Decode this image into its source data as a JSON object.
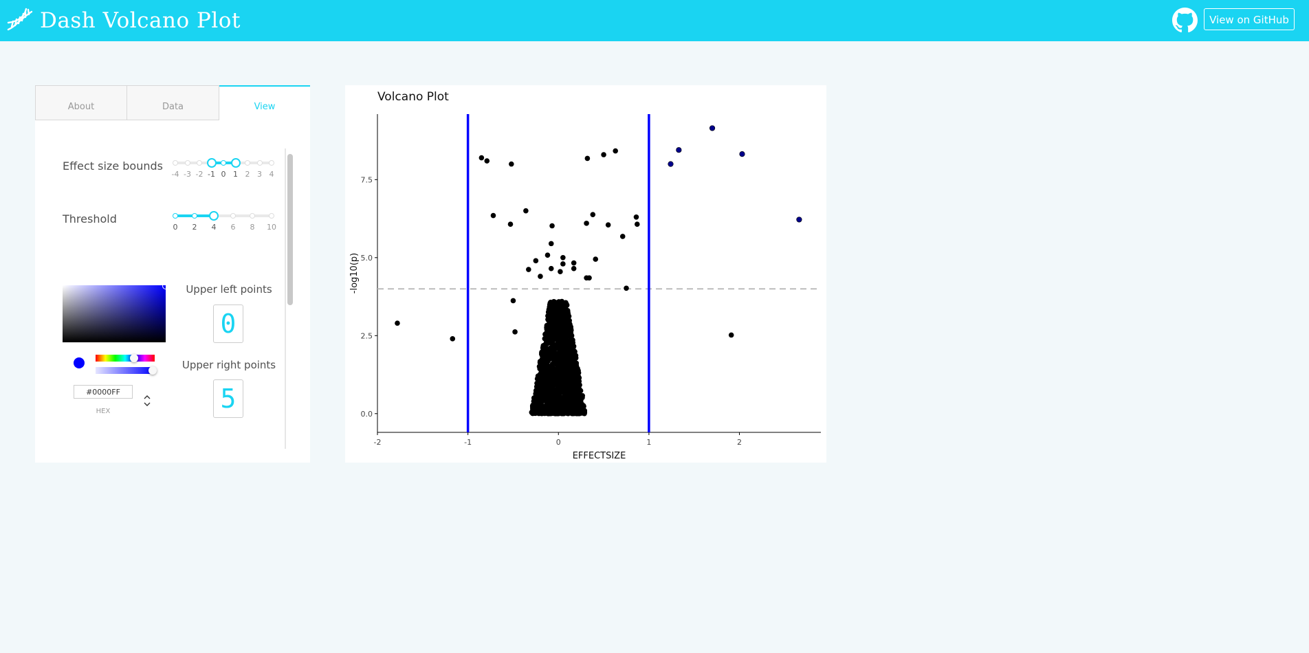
{
  "header": {
    "title": "Dash Volcano Plot",
    "github_button": "View on GitHub",
    "accent_color": "#1ad4f2"
  },
  "tabs": [
    {
      "label": "About",
      "selected": false
    },
    {
      "label": "Data",
      "selected": false
    },
    {
      "label": "View",
      "selected": true
    }
  ],
  "controls": {
    "effect_size": {
      "label": "Effect size bounds",
      "marks": [
        "-4",
        "-3",
        "-2",
        "-1",
        "0",
        "1",
        "2",
        "3",
        "4"
      ],
      "min": -4,
      "max": 4,
      "value": [
        -1,
        1
      ]
    },
    "threshold": {
      "label": "Threshold",
      "marks": [
        "0",
        "2",
        "4",
        "6",
        "8",
        "10"
      ],
      "min": 0,
      "max": 10,
      "value": 4
    },
    "color_picker": {
      "hex_value": "#0000FF",
      "hex_label": "HEX",
      "color": "#0000ff"
    },
    "upper_left": {
      "label": "Upper left points",
      "value": "0"
    },
    "upper_right": {
      "label": "Upper right points",
      "value": "5"
    }
  },
  "chart_data": {
    "type": "scatter",
    "title": "Volcano Plot",
    "xlabel": "EFFECTSIZE",
    "ylabel": "-log10(p)",
    "xlim": [
      -2,
      2.9
    ],
    "ylim": [
      -0.6,
      9.6
    ],
    "x_ticks": [
      "-2",
      "-1",
      "0",
      "1",
      "2"
    ],
    "x_tick_values": [
      -2,
      -1,
      0,
      1,
      2
    ],
    "y_ticks": [
      "0.0",
      "2.5",
      "5.0",
      "7.5"
    ],
    "y_tick_values": [
      0,
      2.5,
      5,
      7.5
    ],
    "grid": false,
    "effect_bounds": [
      -1,
      1
    ],
    "threshold_line": 4,
    "bound_line_color": "#0000ff",
    "threshold_line_color": "#bbbbbb",
    "base_point_color": "#000000",
    "highlight_color": "#00008b",
    "dense_cluster": {
      "x_center": 0.0,
      "x_spread": 0.3,
      "y_min": 0,
      "y_max": 3.6
    },
    "points": [
      {
        "x": -0.85,
        "y": 8.2
      },
      {
        "x": -0.79,
        "y": 8.1
      },
      {
        "x": -0.52,
        "y": 8.0
      },
      {
        "x": -0.72,
        "y": 6.35
      },
      {
        "x": -0.36,
        "y": 6.5
      },
      {
        "x": -0.53,
        "y": 6.07
      },
      {
        "x": -0.07,
        "y": 6.02
      },
      {
        "x": 0.31,
        "y": 6.1
      },
      {
        "x": 0.38,
        "y": 6.38
      },
      {
        "x": 0.55,
        "y": 6.05
      },
      {
        "x": 0.71,
        "y": 5.68
      },
      {
        "x": 0.86,
        "y": 6.3
      },
      {
        "x": 0.87,
        "y": 6.07
      },
      {
        "x": 0.32,
        "y": 8.18
      },
      {
        "x": 0.5,
        "y": 8.3
      },
      {
        "x": 0.63,
        "y": 8.42
      },
      {
        "x": -0.08,
        "y": 5.45
      },
      {
        "x": -0.12,
        "y": 5.08
      },
      {
        "x": -0.25,
        "y": 4.9
      },
      {
        "x": -0.33,
        "y": 4.62
      },
      {
        "x": -0.2,
        "y": 4.4
      },
      {
        "x": -0.08,
        "y": 4.65
      },
      {
        "x": 0.02,
        "y": 4.55
      },
      {
        "x": 0.05,
        "y": 5.0
      },
      {
        "x": 0.05,
        "y": 4.8
      },
      {
        "x": 0.17,
        "y": 4.83
      },
      {
        "x": 0.17,
        "y": 4.65
      },
      {
        "x": 0.31,
        "y": 4.35
      },
      {
        "x": 0.34,
        "y": 4.35
      },
      {
        "x": 0.41,
        "y": 4.95
      },
      {
        "x": 0.75,
        "y": 4.02
      },
      {
        "x": -0.5,
        "y": 3.62
      },
      {
        "x": -0.48,
        "y": 2.62
      },
      {
        "x": -1.78,
        "y": 2.9
      },
      {
        "x": -1.17,
        "y": 2.4
      },
      {
        "x": 1.91,
        "y": 2.52
      },
      {
        "x": 1.24,
        "y": 8.0,
        "highlight": true
      },
      {
        "x": 1.33,
        "y": 8.45,
        "highlight": true
      },
      {
        "x": 1.7,
        "y": 9.15,
        "highlight": true
      },
      {
        "x": 2.03,
        "y": 8.32,
        "highlight": true
      },
      {
        "x": 2.66,
        "y": 6.22,
        "highlight": true
      }
    ]
  }
}
